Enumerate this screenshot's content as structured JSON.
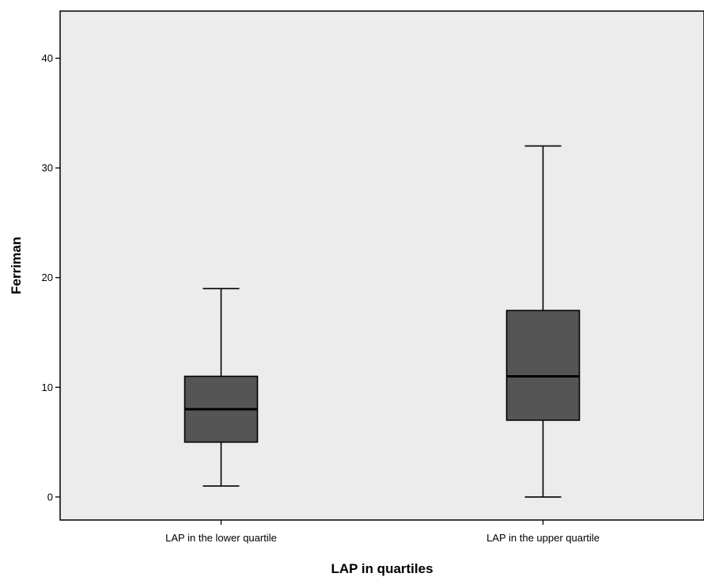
{
  "chart_data": {
    "type": "boxplot",
    "title": "",
    "xlabel": "LAP in quartiles",
    "ylabel": "Ferriman",
    "ylim": [
      -2.1,
      44.3
    ],
    "yticks": [
      0,
      10,
      20,
      30,
      40
    ],
    "yticks_labels": [
      "0",
      "10",
      "20",
      "30",
      "40"
    ],
    "grid": false,
    "categories": [
      "LAP in the lower quartile",
      "LAP in the upper quartile"
    ],
    "boxes": [
      {
        "category": "LAP in the lower quartile",
        "min": 1,
        "q1": 5,
        "median": 8,
        "q3": 11,
        "max": 19
      },
      {
        "category": "LAP in the upper quartile",
        "min": 0,
        "q1": 7,
        "median": 11,
        "q3": 17,
        "max": 32
      }
    ],
    "colors": {
      "plot_background": "#ececec",
      "box_fill": "#555555",
      "line": "#000000"
    }
  }
}
